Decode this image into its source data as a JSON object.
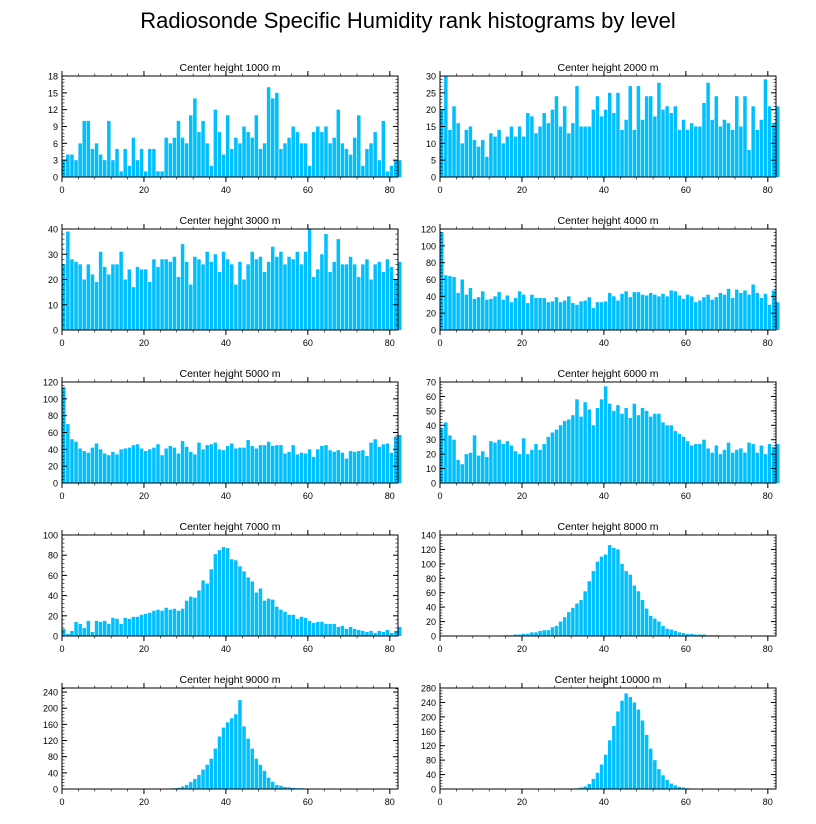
{
  "title": "Radiosonde Specific Humidity rank histograms by level",
  "bar_color": "#00BFFF",
  "chart_data": [
    {
      "type": "bar",
      "title": "Center height 1000 m",
      "xlim": [
        0,
        82
      ],
      "ylim": [
        0,
        18
      ],
      "yticks": [
        0,
        3,
        6,
        9,
        12,
        15,
        18
      ],
      "xticks": [
        0,
        20,
        40,
        60,
        80
      ],
      "values": [
        3,
        4,
        4,
        3,
        6,
        10,
        10,
        5,
        6,
        4,
        3,
        10,
        3,
        5,
        1,
        5,
        2,
        7,
        3,
        5,
        1,
        5,
        5,
        1,
        1,
        7,
        6,
        7,
        10,
        7,
        6,
        11,
        14,
        8,
        10,
        6,
        2,
        12,
        8,
        4,
        11,
        5,
        7,
        6,
        9,
        8,
        7,
        11,
        5,
        6,
        16,
        14,
        15,
        5,
        6,
        7,
        9,
        8,
        6,
        6,
        2,
        8,
        9,
        8,
        9,
        6,
        7,
        12,
        6,
        5,
        4,
        7,
        11,
        2,
        5,
        6,
        8,
        3,
        10,
        1,
        2,
        3,
        3
      ]
    },
    {
      "type": "bar",
      "title": "Center height 2000 m",
      "xlim": [
        0,
        82
      ],
      "ylim": [
        0,
        30
      ],
      "yticks": [
        0,
        5,
        10,
        15,
        20,
        25,
        30
      ],
      "xticks": [
        0,
        20,
        40,
        60,
        80
      ],
      "values": [
        20,
        30,
        14,
        21,
        16,
        10,
        14,
        15,
        11,
        9,
        11,
        6,
        13,
        12,
        14,
        10,
        12,
        15,
        12,
        15,
        12,
        19,
        18,
        13,
        15,
        19,
        16,
        20,
        24,
        15,
        21,
        13,
        16,
        27,
        15,
        15,
        15,
        20,
        24,
        18,
        20,
        25,
        19,
        25,
        14,
        17,
        27,
        14,
        27,
        17,
        24,
        24,
        18,
        28,
        20,
        21,
        19,
        21,
        14,
        17,
        14,
        16,
        15,
        15,
        22,
        28,
        17,
        24,
        15,
        17,
        16,
        14,
        24,
        15,
        24,
        8,
        21,
        14,
        17,
        29,
        21,
        16,
        21
      ]
    },
    {
      "type": "bar",
      "title": "Center height 3000 m",
      "xlim": [
        0,
        82
      ],
      "ylim": [
        0,
        40
      ],
      "yticks": [
        0,
        10,
        20,
        30,
        40
      ],
      "xticks": [
        0,
        20,
        40,
        60,
        80
      ],
      "values": [
        26,
        39,
        28,
        27,
        26,
        20,
        26,
        22,
        19,
        31,
        25,
        22,
        26,
        26,
        31,
        20,
        24,
        17,
        25,
        24,
        24,
        19,
        28,
        25,
        28,
        28,
        27,
        29,
        21,
        34,
        27,
        18,
        29,
        28,
        26,
        31,
        27,
        30,
        23,
        31,
        28,
        26,
        18,
        27,
        20,
        26,
        31,
        28,
        29,
        23,
        27,
        33,
        29,
        31,
        26,
        29,
        28,
        31,
        26,
        31,
        40,
        21,
        24,
        30,
        38,
        23,
        27,
        36,
        26,
        26,
        29,
        26,
        21,
        26,
        28,
        20,
        26,
        27,
        23,
        28,
        25,
        20,
        27
      ]
    },
    {
      "type": "bar",
      "title": "Center height 4000 m",
      "xlim": [
        0,
        82
      ],
      "ylim": [
        0,
        120
      ],
      "yticks": [
        0,
        20,
        40,
        60,
        80,
        100,
        120
      ],
      "xticks": [
        0,
        20,
        40,
        60,
        80
      ],
      "values": [
        116,
        65,
        64,
        63,
        44,
        60,
        42,
        50,
        37,
        39,
        46,
        36,
        37,
        40,
        45,
        36,
        41,
        33,
        38,
        46,
        42,
        32,
        42,
        38,
        38,
        38,
        33,
        34,
        39,
        33,
        35,
        40,
        32,
        30,
        34,
        35,
        39,
        26,
        33,
        33,
        34,
        44,
        40,
        35,
        43,
        46,
        39,
        45,
        45,
        42,
        41,
        44,
        42,
        40,
        43,
        40,
        47,
        46,
        41,
        37,
        42,
        40,
        33,
        35,
        39,
        42,
        36,
        39,
        44,
        42,
        49,
        38,
        48,
        44,
        47,
        42,
        54,
        44,
        38,
        43,
        30,
        47,
        33
      ]
    },
    {
      "type": "bar",
      "title": "Center height 5000 m",
      "xlim": [
        0,
        82
      ],
      "ylim": [
        0,
        120
      ],
      "yticks": [
        0,
        20,
        40,
        60,
        80,
        100,
        120
      ],
      "xticks": [
        0,
        20,
        40,
        60,
        80
      ],
      "values": [
        114,
        70,
        52,
        49,
        41,
        38,
        36,
        42,
        47,
        40,
        35,
        33,
        37,
        34,
        40,
        41,
        42,
        45,
        46,
        41,
        38,
        40,
        42,
        46,
        33,
        41,
        44,
        42,
        35,
        50,
        43,
        37,
        34,
        48,
        40,
        45,
        46,
        48,
        40,
        39,
        44,
        47,
        41,
        42,
        42,
        51,
        44,
        41,
        45,
        45,
        49,
        44,
        45,
        45,
        35,
        37,
        45,
        34,
        36,
        35,
        40,
        31,
        40,
        44,
        45,
        39,
        37,
        39,
        36,
        29,
        38,
        37,
        38,
        39,
        32,
        48,
        52,
        43,
        46,
        47,
        36,
        55,
        57
      ]
    },
    {
      "type": "bar",
      "title": "Center height 6000 m",
      "xlim": [
        0,
        82
      ],
      "ylim": [
        0,
        70
      ],
      "yticks": [
        0,
        10,
        20,
        30,
        40,
        50,
        60,
        70
      ],
      "xticks": [
        0,
        20,
        40,
        60,
        80
      ],
      "values": [
        38,
        42,
        33,
        30,
        16,
        13,
        20,
        21,
        33,
        19,
        22,
        18,
        29,
        28,
        30,
        27,
        29,
        26,
        22,
        20,
        31,
        20,
        23,
        27,
        23,
        27,
        32,
        35,
        37,
        40,
        43,
        44,
        47,
        58,
        46,
        56,
        51,
        40,
        52,
        58,
        67,
        55,
        50,
        54,
        48,
        52,
        45,
        55,
        47,
        52,
        50,
        46,
        48,
        48,
        42,
        40,
        40,
        36,
        34,
        32,
        29,
        26,
        27,
        27,
        30,
        24,
        21,
        26,
        20,
        23,
        28,
        21,
        23,
        24,
        21,
        28,
        27,
        21,
        26,
        20,
        27,
        25,
        27
      ]
    },
    {
      "type": "bar",
      "title": "Center height 7000 m",
      "xlim": [
        0,
        82
      ],
      "ylim": [
        0,
        100
      ],
      "yticks": [
        0,
        20,
        40,
        60,
        80,
        100
      ],
      "xticks": [
        0,
        20,
        40,
        60,
        80
      ],
      "values": [
        7,
        2,
        5,
        14,
        12,
        8,
        15,
        4,
        15,
        14,
        15,
        12,
        18,
        17,
        12,
        18,
        17,
        19,
        19,
        21,
        22,
        23,
        25,
        26,
        25,
        28,
        26,
        27,
        25,
        27,
        35,
        39,
        38,
        45,
        55,
        52,
        66,
        81,
        85,
        88,
        87,
        76,
        75,
        69,
        64,
        58,
        54,
        43,
        47,
        35,
        37,
        36,
        29,
        26,
        24,
        21,
        21,
        17,
        19,
        18,
        15,
        13,
        14,
        14,
        12,
        12,
        12,
        9,
        10,
        7,
        9,
        7,
        6,
        5,
        4,
        5,
        3,
        5,
        4,
        6,
        3,
        5,
        9
      ]
    },
    {
      "type": "bar",
      "title": "Center height 8000 m",
      "xlim": [
        0,
        82
      ],
      "ylim": [
        0,
        140
      ],
      "yticks": [
        0,
        20,
        40,
        60,
        80,
        100,
        120,
        140
      ],
      "xticks": [
        0,
        20,
        40,
        60,
        80
      ],
      "values": [
        0,
        0,
        0,
        0,
        0,
        0,
        0,
        0,
        0,
        0,
        0,
        0,
        0,
        0,
        0,
        0,
        1,
        1,
        2,
        2,
        3,
        3,
        5,
        5,
        7,
        8,
        8,
        12,
        14,
        20,
        26,
        33,
        39,
        45,
        50,
        62,
        76,
        90,
        103,
        110,
        113,
        126,
        122,
        120,
        100,
        90,
        85,
        70,
        62,
        50,
        38,
        28,
        24,
        20,
        14,
        10,
        9,
        7,
        5,
        4,
        3,
        3,
        2,
        2,
        2,
        1,
        1,
        1,
        0,
        0,
        0,
        0,
        0,
        0,
        0,
        0,
        0,
        0,
        0,
        0,
        0,
        0,
        0
      ]
    },
    {
      "type": "bar",
      "title": "Center height 9000 m",
      "xlim": [
        0,
        82
      ],
      "ylim": [
        0,
        250
      ],
      "yticks": [
        0,
        40,
        80,
        120,
        160,
        200,
        240
      ],
      "xticks": [
        0,
        20,
        40,
        60,
        80
      ],
      "values": [
        0,
        0,
        0,
        0,
        0,
        0,
        0,
        0,
        0,
        0,
        0,
        0,
        0,
        0,
        0,
        0,
        0,
        0,
        0,
        0,
        0,
        0,
        0,
        0,
        0,
        0,
        0,
        2,
        3,
        6,
        10,
        17,
        25,
        35,
        48,
        60,
        75,
        100,
        130,
        152,
        165,
        175,
        185,
        220,
        155,
        125,
        100,
        75,
        60,
        45,
        28,
        18,
        10,
        8,
        5,
        4,
        3,
        2,
        2,
        1,
        1,
        0,
        0,
        0,
        0,
        0,
        0,
        0,
        0,
        0,
        0,
        0,
        0,
        0,
        0,
        0,
        0,
        0,
        0,
        0,
        0,
        0,
        0
      ]
    },
    {
      "type": "bar",
      "title": "Center height 10000 m",
      "xlim": [
        0,
        82
      ],
      "ylim": [
        0,
        280
      ],
      "yticks": [
        0,
        40,
        80,
        120,
        160,
        200,
        240,
        280
      ],
      "xticks": [
        0,
        20,
        40,
        60,
        80
      ],
      "values": [
        0,
        0,
        0,
        0,
        0,
        0,
        0,
        0,
        0,
        0,
        0,
        0,
        0,
        0,
        0,
        0,
        0,
        0,
        0,
        0,
        0,
        0,
        0,
        0,
        0,
        0,
        0,
        0,
        0,
        0,
        0,
        0,
        1,
        2,
        4,
        7,
        14,
        28,
        45,
        68,
        95,
        135,
        175,
        215,
        245,
        265,
        255,
        240,
        220,
        190,
        150,
        112,
        80,
        55,
        38,
        25,
        15,
        10,
        6,
        4,
        2,
        1,
        1,
        0,
        0,
        0,
        0,
        0,
        0,
        0,
        0,
        0,
        0,
        0,
        0,
        0,
        0,
        0,
        0,
        0,
        0,
        0,
        0
      ]
    }
  ]
}
